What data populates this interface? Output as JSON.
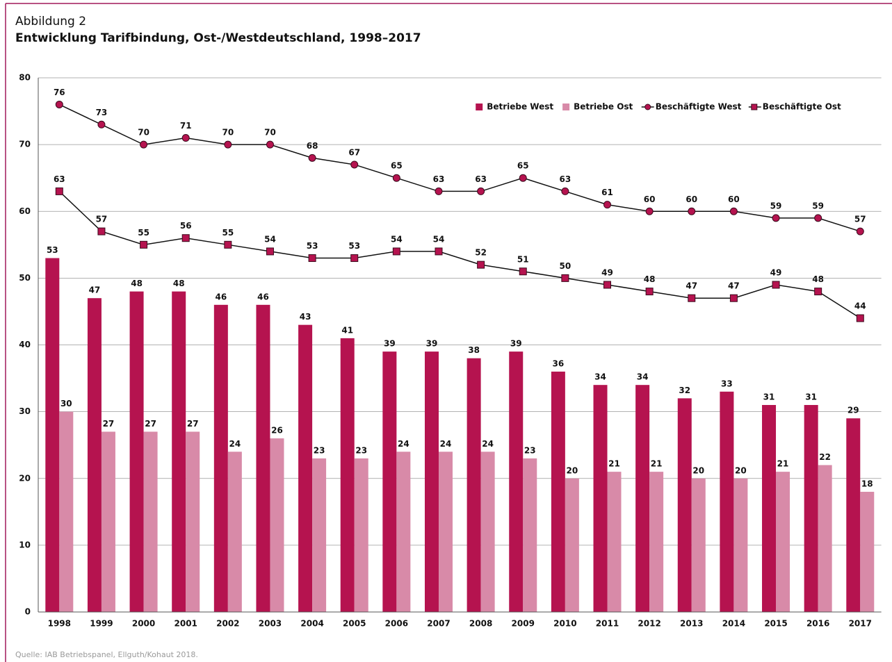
{
  "chart_data": {
    "type": "combo",
    "figure_label": "Abbildung 2",
    "title": "Entwicklung Tarifbindung, Ost-/Westdeutschland, 1998–2017",
    "source": "Quelle: IAB Betriebspanel, Ellguth/Kohaut 2018.",
    "categories": [
      "1998",
      "1999",
      "2000",
      "2001",
      "2002",
      "2003",
      "2004",
      "2005",
      "2006",
      "2007",
      "2008",
      "2009",
      "2010",
      "2011",
      "2012",
      "2013",
      "2014",
      "2015",
      "2016",
      "2017"
    ],
    "series": [
      {
        "name": "Betriebe West",
        "type": "bar",
        "color": "#b5134f",
        "values": [
          53,
          47,
          48,
          48,
          46,
          46,
          43,
          41,
          39,
          39,
          38,
          39,
          36,
          34,
          34,
          32,
          33,
          31,
          31,
          29
        ]
      },
      {
        "name": "Betriebe Ost",
        "type": "bar",
        "color": "#d88aa8",
        "values": [
          30,
          27,
          27,
          27,
          24,
          26,
          23,
          23,
          24,
          24,
          24,
          23,
          20,
          21,
          21,
          20,
          20,
          21,
          22,
          18
        ]
      },
      {
        "name": "Beschäftigte West",
        "type": "line",
        "marker": "circle",
        "color": "#b5134f",
        "values": [
          76,
          73,
          70,
          71,
          70,
          70,
          68,
          67,
          65,
          63,
          63,
          65,
          63,
          61,
          60,
          60,
          60,
          59,
          59,
          57
        ]
      },
      {
        "name": "Beschäftigte Ost",
        "type": "line",
        "marker": "square",
        "color": "#b5134f",
        "values": [
          63,
          57,
          55,
          56,
          55,
          54,
          53,
          53,
          54,
          54,
          52,
          51,
          50,
          49,
          48,
          47,
          47,
          49,
          48,
          44
        ]
      }
    ],
    "ylim": [
      0,
      80
    ],
    "yticks": [
      0,
      10,
      20,
      30,
      40,
      50,
      60,
      70,
      80
    ],
    "grid": true,
    "legend": "top-right"
  }
}
